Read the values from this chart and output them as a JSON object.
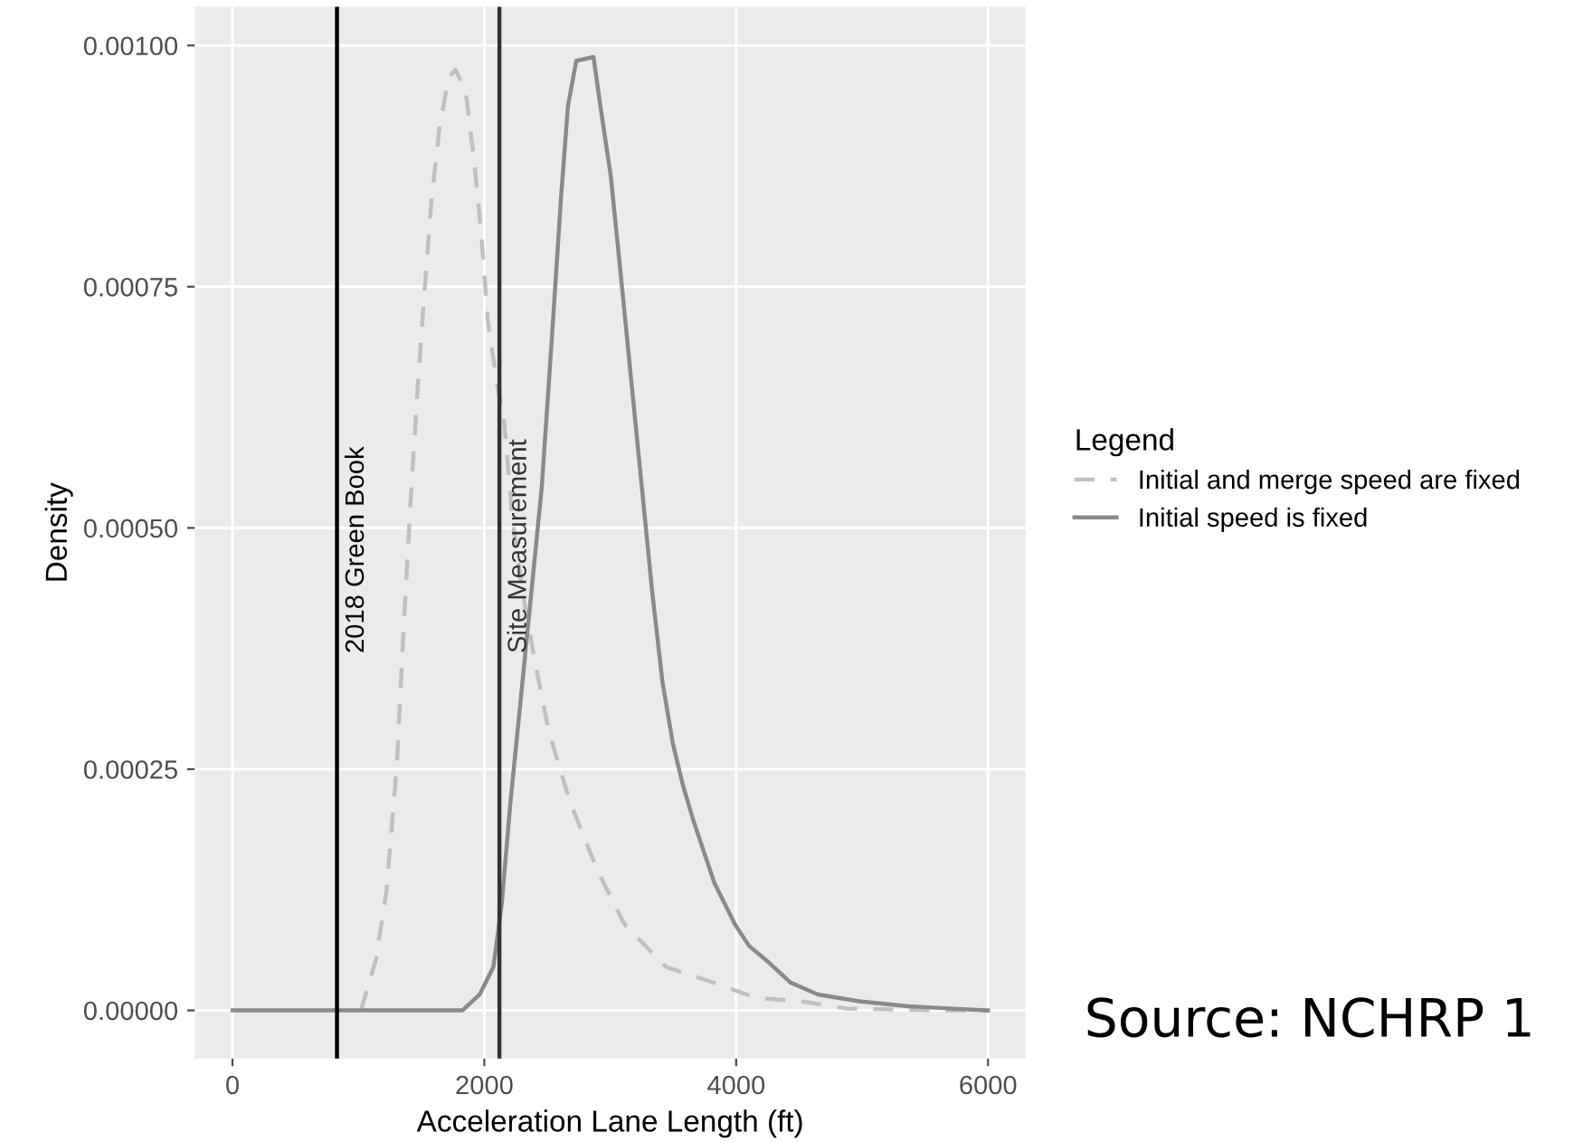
{
  "chart_data": {
    "type": "line",
    "xlabel": "Acceleration Lane Length (ft)",
    "ylabel": "Density",
    "legend_title": "Legend",
    "xlim": [
      -300,
      6300
    ],
    "xticks": [
      0,
      2000,
      4000,
      6000
    ],
    "ylim": [
      -5e-05,
      0.00104
    ],
    "yticks": [
      {
        "value": 0,
        "label": "0.00000"
      },
      {
        "value": 0.00025,
        "label": "0.00025"
      },
      {
        "value": 0.0005,
        "label": "0.00050"
      },
      {
        "value": 0.00075,
        "label": "0.00075"
      },
      {
        "value": 0.001,
        "label": "0.00100"
      }
    ],
    "grid": true,
    "legend": "right",
    "series": [
      {
        "name": "Initial and merge speed are fixed",
        "color": "#c0c0c0",
        "line_style": "dashed",
        "x": [
          1020,
          1140,
          1223,
          1305,
          1360,
          1414,
          1469,
          1524,
          1579,
          1645,
          1716,
          1771,
          1853,
          1919,
          1974,
          2029,
          2100,
          2155,
          2226,
          2303,
          2401,
          2511,
          2675,
          2895,
          3114,
          3443,
          3772,
          4156,
          4539,
          4868,
          5636,
          6000
        ],
        "values": [
          0,
          5.3e-05,
          0.000124,
          0.000254,
          0.000398,
          0.000527,
          0.000642,
          0.000743,
          0.000837,
          0.000916,
          0.000966,
          0.000975,
          0.000952,
          0.00088,
          0.000808,
          0.000714,
          0.00065,
          0.000614,
          0.000506,
          0.000434,
          0.000362,
          0.00029,
          0.000218,
          0.000146,
          8.9e-05,
          4.5e-05,
          3.1e-05,
          1.3e-05,
          9e-06,
          2e-06,
          0,
          0
        ]
      },
      {
        "name": "Initial speed is fixed",
        "color": "#8a8a8a",
        "line_style": "solid",
        "x": [
          0,
          1826,
          1963,
          2072,
          2138,
          2209,
          2292,
          2374,
          2456,
          2538,
          2610,
          2664,
          2730,
          2867,
          2922,
          3004,
          3087,
          3169,
          3251,
          3333,
          3415,
          3498,
          3580,
          3662,
          3827,
          3991,
          4101,
          4265,
          4430,
          4649,
          4978,
          5362,
          6000
        ],
        "values": [
          0,
          0,
          1.65e-05,
          4.5e-05,
          0.00011,
          0.000218,
          0.000326,
          0.000434,
          0.000542,
          0.0007,
          0.000844,
          0.000937,
          0.000984,
          0.000988,
          0.000937,
          0.000865,
          0.000758,
          0.00065,
          0.000542,
          0.000434,
          0.00034,
          0.000276,
          0.000232,
          0.000196,
          0.000132,
          8.9e-05,
          6.7e-05,
          4.9e-05,
          2.9e-05,
          1.65e-05,
          9.4e-06,
          4.3e-06,
          0
        ]
      }
    ],
    "ref_lines": [
      {
        "axis": "x",
        "value": 830,
        "label": "2018 Green Book",
        "color": "#000000"
      },
      {
        "axis": "x",
        "value": 2120,
        "label": "Site Measurement",
        "color": "#333333"
      }
    ],
    "annotations": [
      "Source: NCHRP 1"
    ]
  }
}
